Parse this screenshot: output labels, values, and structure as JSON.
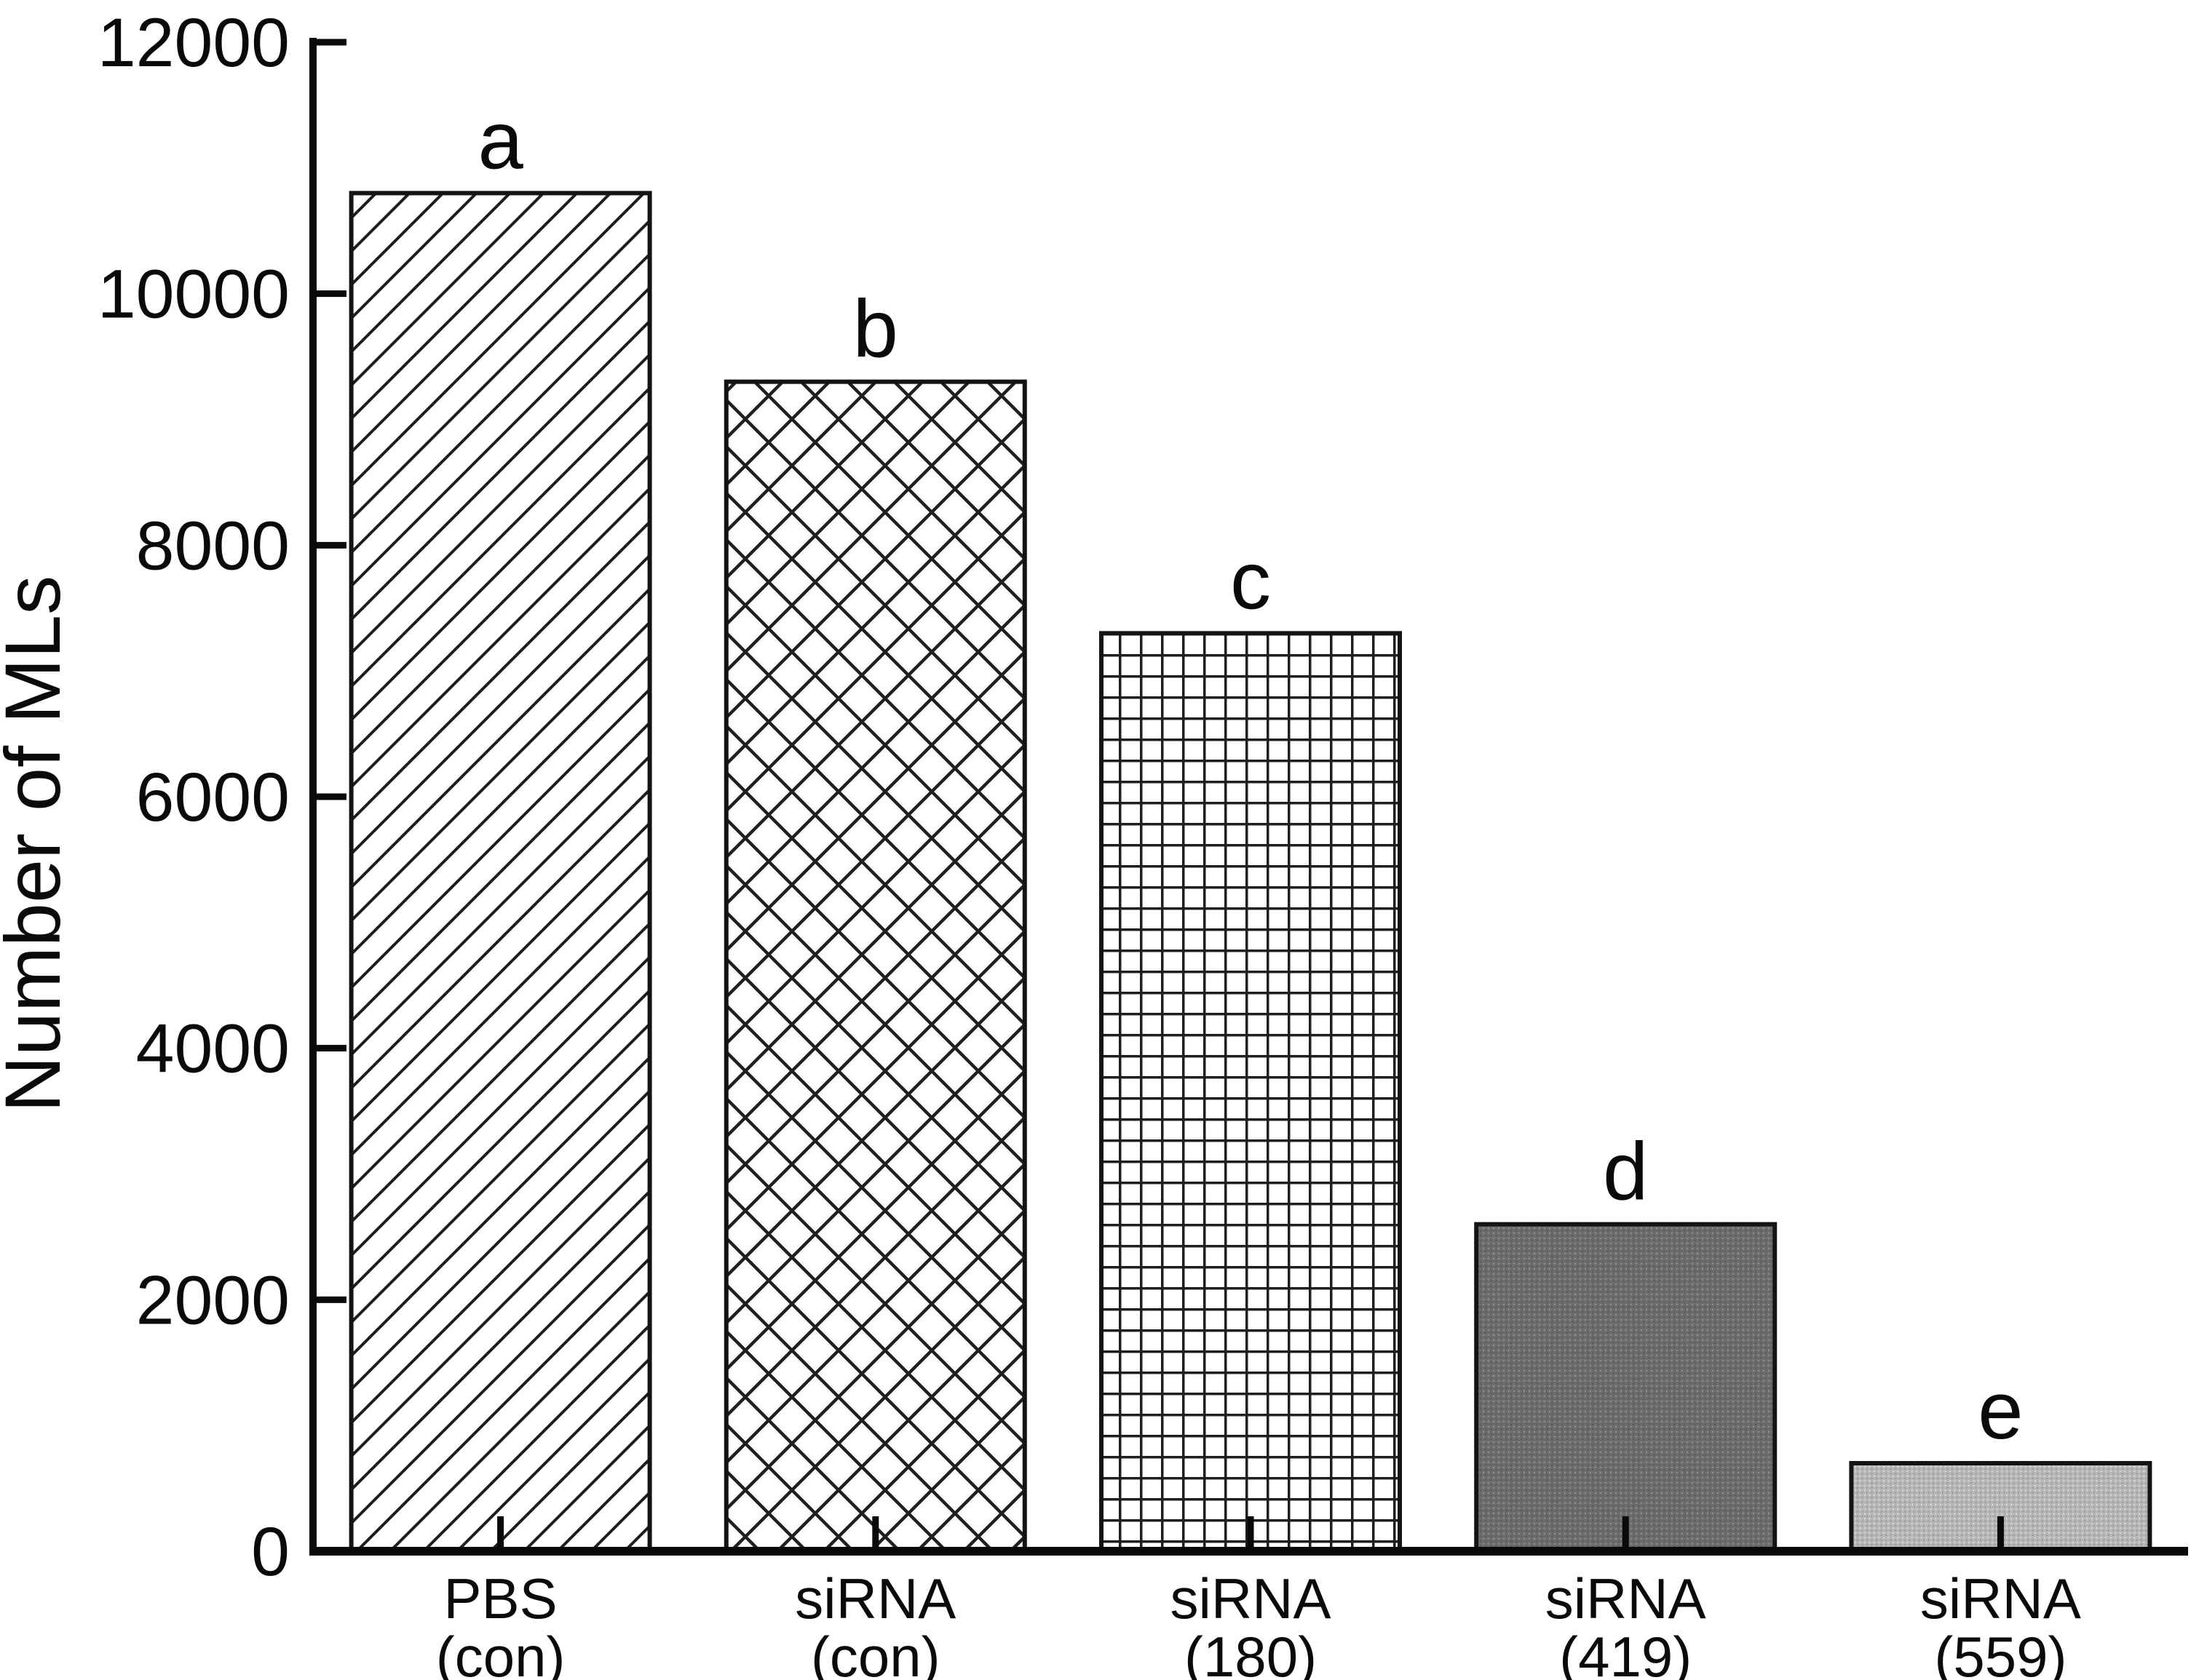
{
  "chart_data": {
    "type": "bar",
    "title": "",
    "ylabel": "Number of MLs",
    "xlabel": "",
    "ylim": [
      0,
      12000
    ],
    "ytick_step": 2000,
    "yticks": [
      0,
      2000,
      4000,
      6000,
      8000,
      10000,
      12000
    ],
    "grid": false,
    "legend": "none",
    "tick_direction": "in",
    "background_color": "#ffffff",
    "axis_color": "#0a0a0a",
    "bar_outline_color": "#141414",
    "categories": [
      {
        "line1": "PBS",
        "line2": "(con)"
      },
      {
        "line1": "siRNA",
        "line2": "(con)"
      },
      {
        "line1": "siRNA",
        "line2": "(180)"
      },
      {
        "line1": "siRNA",
        "line2": "(419)"
      },
      {
        "line1": "siRNA",
        "line2": "(559)"
      }
    ],
    "series": [
      {
        "name": "Number of MLs",
        "values": [
          10800,
          9300,
          7300,
          2600,
          700
        ],
        "letters": [
          "a",
          "b",
          "c",
          "d",
          "e"
        ],
        "fills": [
          "diagonal-hatch",
          "diagonal-crosshatch",
          "square-grid",
          "dark-dotted",
          "light-dotted"
        ],
        "dark_fill_color": "#6c6c6c",
        "dark_fill_dot_light": "#989898",
        "dark_fill_dot_dark": "#525252",
        "light_fill_color": "#b6b6b6",
        "light_fill_dot_light": "#e6e6e6",
        "light_fill_dot_dark": "#8f8f8f",
        "hatch_color": "#1f1f1f"
      }
    ]
  }
}
